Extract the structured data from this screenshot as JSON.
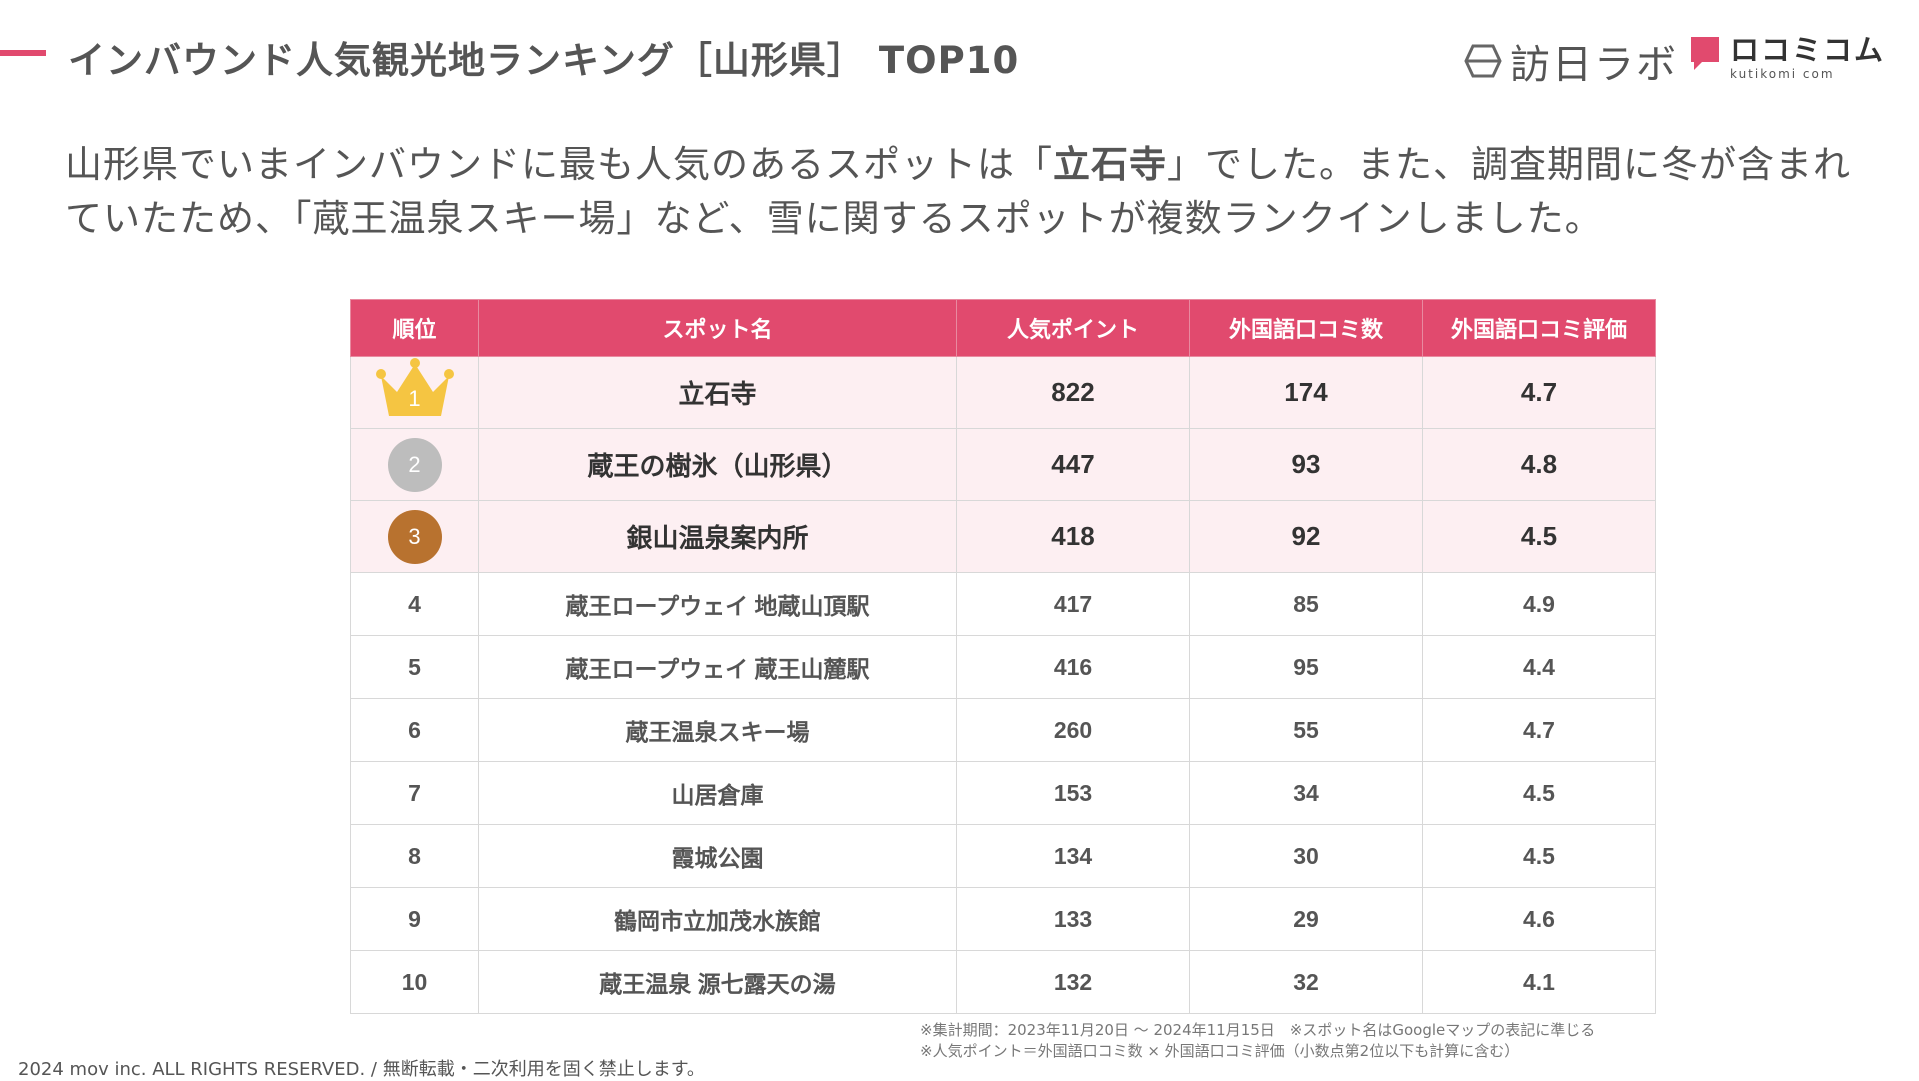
{
  "header": {
    "title": "インバウンド人気観光地ランキング［山形県］",
    "title_en": "TOP10",
    "accent_color": "#e14a6e"
  },
  "logos": {
    "brand1": "訪日ラボ",
    "brand2_jp": "ロコミコム",
    "brand2_en": "kutikomi com"
  },
  "lead": {
    "part1": "山形県でいまインバウンドに最も人気のあるスポットは「",
    "highlight": "立石寺",
    "part2": "」でした。また、調査期間に冬が含まれていたため、「蔵王温泉スキー場」など、雪に関するスポットが複数ランクインしました。"
  },
  "table": {
    "headers": [
      "順位",
      "スポット名",
      "人気ポイント",
      "外国語口コミ数",
      "外国語口コミ評価"
    ],
    "rows": [
      {
        "rank": "1",
        "name": "立石寺",
        "points": "822",
        "reviews": "174",
        "rating": "4.7"
      },
      {
        "rank": "2",
        "name": "蔵王の樹氷（山形県）",
        "points": "447",
        "reviews": "93",
        "rating": "4.8"
      },
      {
        "rank": "3",
        "name": "銀山温泉案内所",
        "points": "418",
        "reviews": "92",
        "rating": "4.5"
      },
      {
        "rank": "4",
        "name": "蔵王ロープウェイ 地蔵山頂駅",
        "points": "417",
        "reviews": "85",
        "rating": "4.9"
      },
      {
        "rank": "5",
        "name": "蔵王ロープウェイ 蔵王山麓駅",
        "points": "416",
        "reviews": "95",
        "rating": "4.4"
      },
      {
        "rank": "6",
        "name": "蔵王温泉スキー場",
        "points": "260",
        "reviews": "55",
        "rating": "4.7"
      },
      {
        "rank": "7",
        "name": "山居倉庫",
        "points": "153",
        "reviews": "34",
        "rating": "4.5"
      },
      {
        "rank": "8",
        "name": "霞城公園",
        "points": "134",
        "reviews": "30",
        "rating": "4.5"
      },
      {
        "rank": "9",
        "name": "鶴岡市立加茂水族館",
        "points": "133",
        "reviews": "29",
        "rating": "4.6"
      },
      {
        "rank": "10",
        "name": "蔵王温泉 源七露天の湯",
        "points": "132",
        "reviews": "32",
        "rating": "4.1"
      }
    ]
  },
  "footer": {
    "copyright": "2024 mov inc. ALL RIGHTS RESERVED. / 無断転載・二次利用を固く禁止します。",
    "note1": "※集計期間：2023年11月20日 〜 2024年11月15日　※スポット名はGoogleマップの表記に準じる",
    "note2": "※人気ポイント＝外国語口コミ数 × 外国語口コミ評価（小数点第2位以下も計算に含む）"
  },
  "colors": {
    "header_bg": "#e14a6e",
    "top3_row_bg": "#fdeff2",
    "gold": "#f5c542",
    "silver": "#bdbdbd",
    "bronze": "#b8722f"
  }
}
